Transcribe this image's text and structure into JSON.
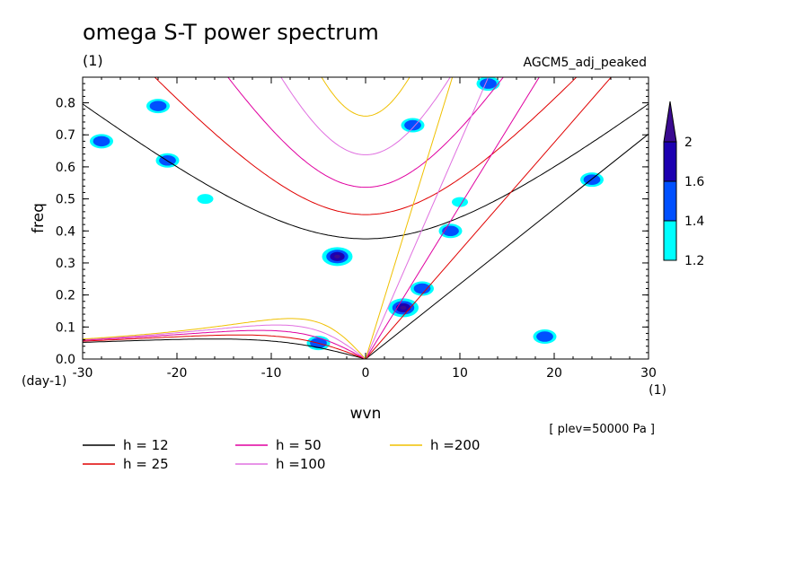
{
  "chart_data": {
    "type": "heatmap",
    "title": "omega S-T power spectrum",
    "subtitle": "(1)",
    "run_label": "AGCM5_adj_peaked",
    "xlabel": "wvn",
    "ylabel": "freq",
    "x_unit": "(1)",
    "y_unit": "(day-1)",
    "level_note": "[ plev=50000 Pa ]",
    "xlim": [
      -30,
      30
    ],
    "ylim": [
      0,
      0.88
    ],
    "x_ticks": [
      -30,
      -20,
      -10,
      0,
      10,
      20,
      30
    ],
    "x_tick_labels": [
      "-30",
      "-20",
      "-10",
      "0",
      "10",
      "20",
      "30"
    ],
    "y_ticks": [
      0.0,
      0.1,
      0.2,
      0.3,
      0.4,
      0.5,
      0.6,
      0.7,
      0.8
    ],
    "y_tick_labels": [
      "0.0",
      "0.1",
      "0.2",
      "0.3",
      "0.4",
      "0.5",
      "0.6",
      "0.7",
      "0.8"
    ],
    "grid": false,
    "colorbar": {
      "levels": [
        1.2,
        1.4,
        1.6,
        2
      ],
      "labels": [
        "1.2",
        "1.4",
        "1.6",
        "2"
      ],
      "colors": [
        "#00ffff",
        "#0050ff",
        "#1c00b0",
        "#3a0a90"
      ]
    },
    "dispersion_curves": [
      {
        "name": "h = 12",
        "color": "#000000"
      },
      {
        "name": "h = 25",
        "color": "#e00000"
      },
      {
        "name": "h = 50",
        "color": "#e000a0"
      },
      {
        "name": "h =100",
        "color": "#e070e0"
      },
      {
        "name": "h =200",
        "color": "#f0c000"
      }
    ],
    "features": [
      {
        "x": -3,
        "y": 0.32,
        "level": 2
      },
      {
        "x": 4,
        "y": 0.16,
        "level": 2
      },
      {
        "x": 6,
        "y": 0.22,
        "level": 1.6
      },
      {
        "x": 9,
        "y": 0.4,
        "level": 1.6
      },
      {
        "x": 10,
        "y": 0.49,
        "level": 1.4
      },
      {
        "x": 5,
        "y": 0.73,
        "level": 1.6
      },
      {
        "x": 13,
        "y": 0.86,
        "level": 1.6
      },
      {
        "x": -5,
        "y": 0.05,
        "level": 1.6
      },
      {
        "x": 24,
        "y": 0.56,
        "level": 1.6
      },
      {
        "x": -17,
        "y": 0.5,
        "level": 1.4
      },
      {
        "x": -28,
        "y": 0.68,
        "level": 1.6
      },
      {
        "x": -21,
        "y": 0.62,
        "level": 1.6
      },
      {
        "x": -22,
        "y": 0.79,
        "level": 1.6
      },
      {
        "x": 19,
        "y": 0.07,
        "level": 1.6
      }
    ]
  }
}
